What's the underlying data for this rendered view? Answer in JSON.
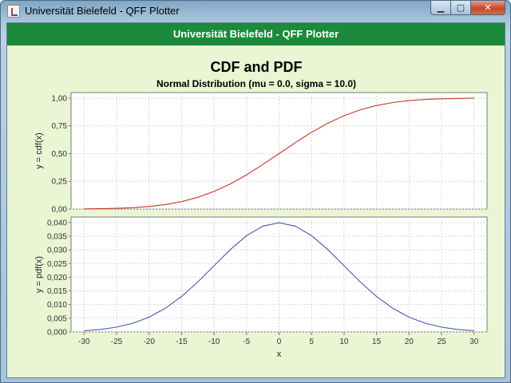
{
  "window": {
    "title": "Universität Bielefeld - QFF Plotter",
    "controls": {
      "minimize": "▁",
      "maximize": "▢",
      "close": "✕"
    }
  },
  "header": {
    "title": "Universität Bielefeld - QFF Plotter"
  },
  "chart_data": [
    {
      "type": "line",
      "title": "CDF and PDF",
      "subtitle": "Normal Distribution (mu = 0.0, sigma = 10.0)",
      "xlabel": "",
      "ylabel": "y = cdf(x)",
      "xlim": [
        -32,
        32
      ],
      "ylim": [
        0,
        1.05
      ],
      "x_ticks": [
        -30,
        -25,
        -20,
        -15,
        -10,
        -5,
        0,
        5,
        10,
        15,
        20,
        25,
        30
      ],
      "y_ticks": [
        "0,00",
        "0,25",
        "0,50",
        "0,75",
        "1,00"
      ],
      "y_tick_values": [
        0,
        0.25,
        0.5,
        0.75,
        1.0
      ],
      "grid": true,
      "series": [
        {
          "color": "#c0392b",
          "x": [
            -30,
            -27.5,
            -25,
            -22.5,
            -20,
            -17.5,
            -15,
            -12.5,
            -10,
            -7.5,
            -5,
            -2.5,
            0,
            2.5,
            5,
            7.5,
            10,
            12.5,
            15,
            17.5,
            20,
            22.5,
            25,
            27.5,
            30
          ],
          "y": [
            0.0013,
            0.003,
            0.0062,
            0.0122,
            0.0228,
            0.0401,
            0.0668,
            0.1056,
            0.1587,
            0.2266,
            0.3085,
            0.4013,
            0.5,
            0.5987,
            0.6915,
            0.7734,
            0.8413,
            0.8944,
            0.9332,
            0.9599,
            0.9772,
            0.9878,
            0.9938,
            0.997,
            0.9987
          ]
        }
      ]
    },
    {
      "type": "line",
      "xlabel": "x",
      "ylabel": "y = pdf(x)",
      "xlim": [
        -32,
        32
      ],
      "ylim": [
        0,
        0.042
      ],
      "x_ticks": [
        -30,
        -25,
        -20,
        -15,
        -10,
        -5,
        0,
        5,
        10,
        15,
        20,
        25,
        30
      ],
      "y_ticks": [
        "0,000",
        "0,005",
        "0,010",
        "0,015",
        "0,020",
        "0,025",
        "0,030",
        "0,035",
        "0,040"
      ],
      "y_tick_values": [
        0,
        0.005,
        0.01,
        0.015,
        0.02,
        0.025,
        0.03,
        0.035,
        0.04
      ],
      "grid": true,
      "series": [
        {
          "color": "#4a55a8",
          "x": [
            -30,
            -27.5,
            -25,
            -22.5,
            -20,
            -17.5,
            -15,
            -12.5,
            -10,
            -7.5,
            -5,
            -2.5,
            0,
            2.5,
            5,
            7.5,
            10,
            12.5,
            15,
            17.5,
            20,
            22.5,
            25,
            27.5,
            30
          ],
          "y": [
            0.00044,
            0.00091,
            0.00175,
            0.00317,
            0.0054,
            0.00863,
            0.01295,
            0.01826,
            0.0242,
            0.03011,
            0.03521,
            0.03867,
            0.03989,
            0.03867,
            0.03521,
            0.03011,
            0.0242,
            0.01826,
            0.01295,
            0.00863,
            0.0054,
            0.00317,
            0.00175,
            0.00091,
            0.00044
          ]
        }
      ]
    }
  ]
}
